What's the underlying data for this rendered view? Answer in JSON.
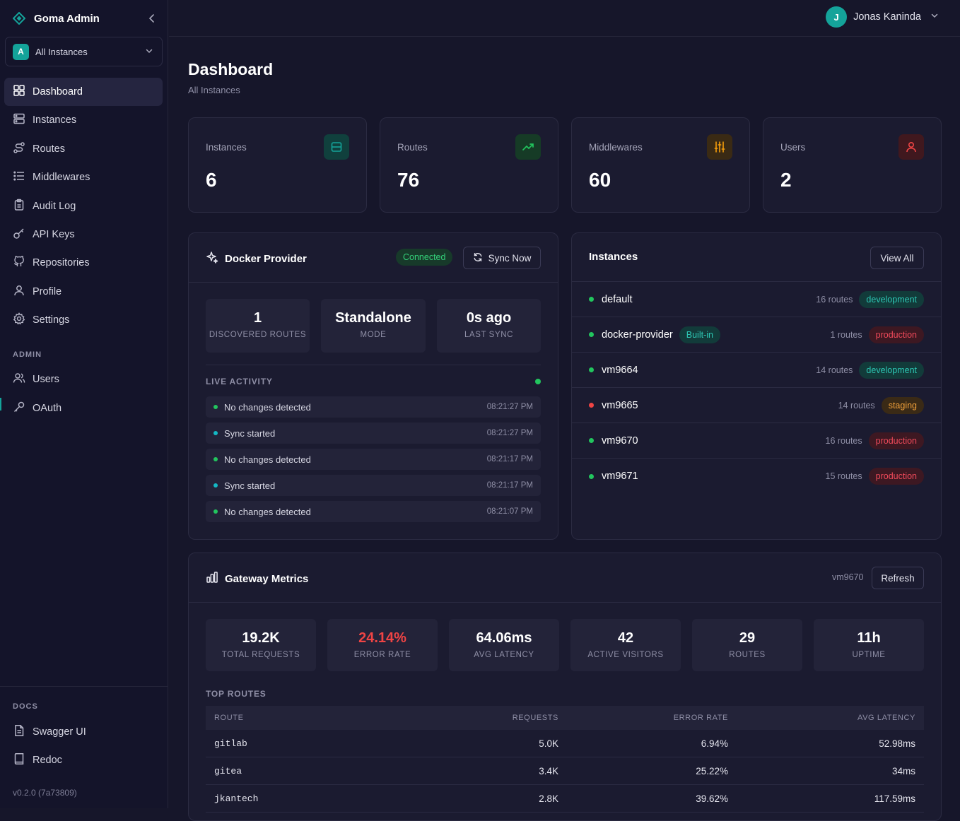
{
  "sidebar": {
    "brand": "Goma Admin",
    "instance_selector": {
      "avatar": "A",
      "label": "All Instances"
    },
    "nav": [
      {
        "label": "Dashboard",
        "icon": "dashboard-icon",
        "active": true
      },
      {
        "label": "Instances",
        "icon": "server-icon"
      },
      {
        "label": "Routes",
        "icon": "route-icon"
      },
      {
        "label": "Middlewares",
        "icon": "list-icon"
      },
      {
        "label": "Audit Log",
        "icon": "clipboard-icon"
      },
      {
        "label": "API Keys",
        "icon": "key-icon"
      },
      {
        "label": "Repositories",
        "icon": "github-icon"
      },
      {
        "label": "Profile",
        "icon": "user-icon"
      },
      {
        "label": "Settings",
        "icon": "gear-icon"
      }
    ],
    "admin_label": "ADMIN",
    "admin_nav": [
      {
        "label": "Users",
        "icon": "users-icon"
      },
      {
        "label": "OAuth",
        "icon": "oauth-key-icon"
      }
    ],
    "docs_label": "DOCS",
    "docs_nav": [
      {
        "label": "Swagger UI",
        "icon": "file-icon"
      },
      {
        "label": "Redoc",
        "icon": "book-icon"
      }
    ],
    "version": "v0.2.0 (7a73809)"
  },
  "topbar": {
    "user_initial": "J",
    "user_name": "Jonas Kaninda"
  },
  "page": {
    "title": "Dashboard",
    "subtitle": "All Instances"
  },
  "stats": [
    {
      "label": "Instances",
      "value": "6",
      "icon": "server-icon",
      "color": "#14a39a"
    },
    {
      "label": "Routes",
      "value": "76",
      "icon": "trending-up-icon",
      "color": "#22c55e"
    },
    {
      "label": "Middlewares",
      "value": "60",
      "icon": "sliders-icon",
      "color": "#f59e0b"
    },
    {
      "label": "Users",
      "value": "2",
      "icon": "users-icon",
      "color": "#ef4444"
    }
  ],
  "docker": {
    "title": "Docker Provider",
    "status": "Connected",
    "sync_button": "Sync Now",
    "metrics": [
      {
        "value": "1",
        "label": "DISCOVERED ROUTES"
      },
      {
        "value": "Standalone",
        "label": "MODE"
      },
      {
        "value": "0s ago",
        "label": "LAST SYNC"
      }
    ],
    "activity_label": "LIVE ACTIVITY",
    "activity": [
      {
        "text": "No changes detected",
        "time": "08:21:27 PM",
        "color": "#22c55e"
      },
      {
        "text": "Sync started",
        "time": "08:21:27 PM",
        "color": "#14b8c4"
      },
      {
        "text": "No changes detected",
        "time": "08:21:17 PM",
        "color": "#22c55e"
      },
      {
        "text": "Sync started",
        "time": "08:21:17 PM",
        "color": "#14b8c4"
      },
      {
        "text": "No changes detected",
        "time": "08:21:07 PM",
        "color": "#22c55e"
      }
    ]
  },
  "instances": {
    "title": "Instances",
    "view_all": "View All",
    "rows": [
      {
        "name": "default",
        "badge": "",
        "routes": "16 routes",
        "env": "development",
        "status": "up"
      },
      {
        "name": "docker-provider",
        "badge": "Built-in",
        "routes": "1 routes",
        "env": "production",
        "status": "up"
      },
      {
        "name": "vm9664",
        "badge": "",
        "routes": "14 routes",
        "env": "development",
        "status": "up"
      },
      {
        "name": "vm9665",
        "badge": "",
        "routes": "14 routes",
        "env": "staging",
        "status": "down"
      },
      {
        "name": "vm9670",
        "badge": "",
        "routes": "16 routes",
        "env": "production",
        "status": "up"
      },
      {
        "name": "vm9671",
        "badge": "",
        "routes": "15 routes",
        "env": "production",
        "status": "up"
      }
    ]
  },
  "gateway": {
    "title": "Gateway Metrics",
    "instance": "vm9670",
    "refresh": "Refresh",
    "metrics": [
      {
        "value": "19.2K",
        "label": "TOTAL REQUESTS"
      },
      {
        "value": "24.14%",
        "label": "ERROR RATE",
        "alert": true
      },
      {
        "value": "64.06ms",
        "label": "AVG LATENCY"
      },
      {
        "value": "42",
        "label": "ACTIVE VISITORS"
      },
      {
        "value": "29",
        "label": "ROUTES"
      },
      {
        "value": "11h",
        "label": "UPTIME"
      }
    ],
    "top_routes_label": "TOP ROUTES",
    "columns": [
      "ROUTE",
      "REQUESTS",
      "ERROR RATE",
      "AVG LATENCY"
    ],
    "rows": [
      {
        "route": "gitlab",
        "requests": "5.0K",
        "error_rate": "6.94%",
        "latency": "52.98ms"
      },
      {
        "route": "gitea",
        "requests": "3.4K",
        "error_rate": "25.22%",
        "latency": "34ms"
      },
      {
        "route": "jkantech",
        "requests": "2.8K",
        "error_rate": "39.62%",
        "latency": "117.59ms"
      }
    ]
  },
  "colors": {
    "accent": "#14a39a",
    "error": "#ef4444",
    "up": "#22c55e",
    "down": "#ef4444"
  }
}
